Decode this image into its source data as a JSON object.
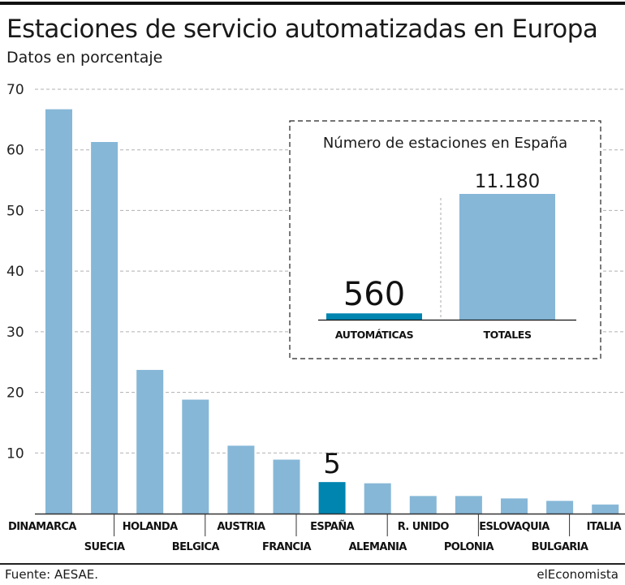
{
  "header": {
    "title": "Estaciones de servicio automatizadas en Europa",
    "subtitle": "Datos en porcentaje"
  },
  "footer": {
    "source": "Fuente: AESAE.",
    "brand": "elEconomista"
  },
  "colors": {
    "bar": "#86b7d7",
    "highlight": "#0085b0",
    "grid": "#b0b0b0",
    "axis": "#333333"
  },
  "chart_data": [
    {
      "type": "bar",
      "title": "Estaciones de servicio automatizadas en Europa",
      "subtitle": "Datos en porcentaje",
      "xlabel": "",
      "ylabel": "",
      "ylim": [
        0,
        70
      ],
      "yticks": [
        10,
        20,
        30,
        40,
        50,
        60,
        70
      ],
      "grid": true,
      "categories": [
        "DINAMARCA",
        "SUECIA",
        "HOLANDA",
        "BELGICA",
        "AUSTRIA",
        "FRANCIA",
        "ESPAÑA",
        "ALEMANIA",
        "R. UNIDO",
        "POLONIA",
        "ESLOVAQUIA",
        "BULGARIA",
        "ITALIA"
      ],
      "values": [
        66.7,
        61.3,
        23.7,
        18.8,
        11.2,
        8.9,
        5.2,
        5.0,
        2.9,
        2.9,
        2.5,
        2.1,
        1.5
      ],
      "highlight_index": 6,
      "annotations": [
        {
          "category": "ESPAÑA",
          "text": "5"
        }
      ]
    },
    {
      "type": "bar",
      "title": "Número de estaciones en España",
      "categories": [
        "AUTOMÁTICAS",
        "TOTALES"
      ],
      "values": [
        560,
        11180
      ],
      "value_labels": [
        "560",
        "11.180"
      ],
      "highlight_index": 0
    }
  ]
}
